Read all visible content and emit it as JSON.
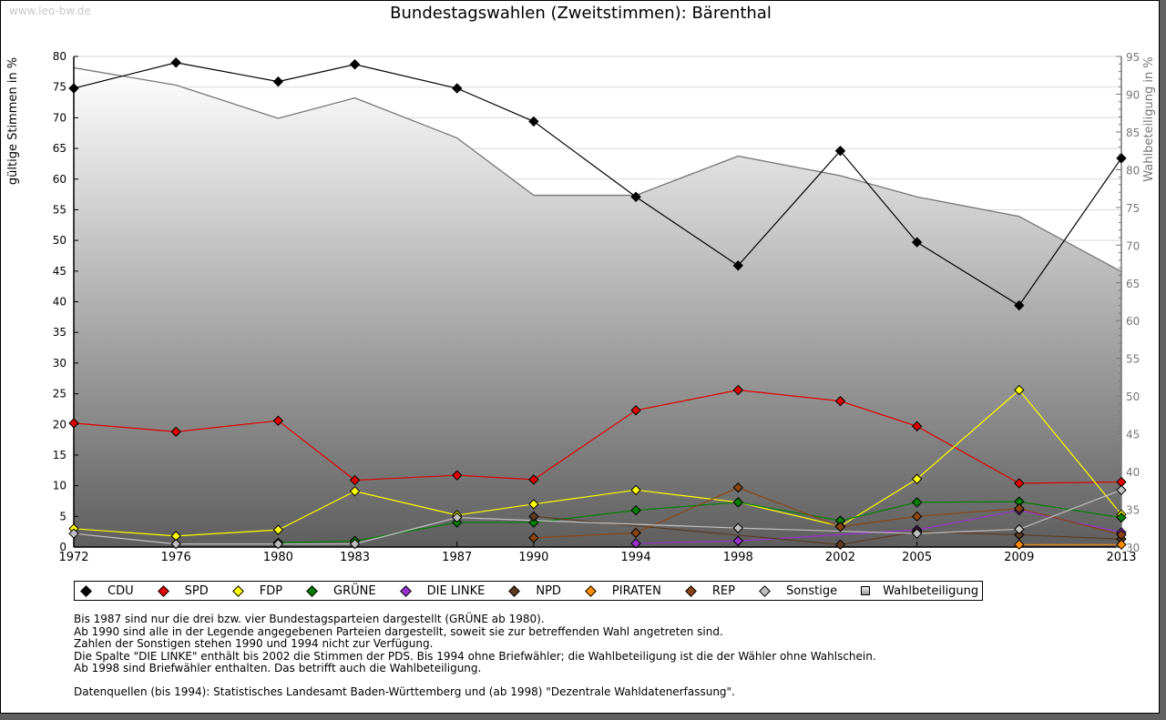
{
  "watermark": "www.leo-bw.de",
  "chart_data": {
    "type": "line",
    "title": "Bundestagswahlen (Zweitstimmen): Bärenthal",
    "ylabel": "gültige Stimmen in %",
    "ylabel_right": "Wahlbeteiligung in %",
    "x": [
      "1972",
      "1976",
      "1980",
      "1983",
      "1987",
      "1990",
      "1994",
      "1998",
      "2002",
      "2005",
      "2009",
      "2013"
    ],
    "ylim": [
      0,
      80
    ],
    "ylim_right": [
      30,
      95
    ],
    "yticks": [
      "0",
      "5",
      "10",
      "15",
      "20",
      "25",
      "30",
      "35",
      "40",
      "45",
      "50",
      "55",
      "60",
      "65",
      "70",
      "75",
      "80"
    ],
    "yticks_right": [
      "30",
      "35",
      "40",
      "45",
      "50",
      "55",
      "60",
      "65",
      "70",
      "75",
      "80",
      "85",
      "90",
      "95"
    ],
    "grid": true,
    "series": [
      {
        "name": "CDU",
        "color": "#000000",
        "values": [
          74.8,
          79.0,
          75.9,
          78.7,
          74.8,
          69.4,
          57.1,
          45.9,
          64.6,
          49.7,
          39.4,
          63.4
        ]
      },
      {
        "name": "SPD",
        "color": "#e00000",
        "values": [
          20.2,
          18.8,
          20.6,
          10.9,
          11.7,
          11.0,
          22.3,
          25.6,
          23.8,
          19.7,
          10.4,
          10.6
        ]
      },
      {
        "name": "FDP",
        "color": "#ffff00",
        "values": [
          3.0,
          1.8,
          2.8,
          9.1,
          5.2,
          7.0,
          9.3,
          7.3,
          3.4,
          11.1,
          25.6,
          5.3
        ]
      },
      {
        "name": "GRÜNE",
        "color": "#008000",
        "values": [
          null,
          null,
          0.7,
          1.0,
          4.0,
          4.0,
          6.0,
          7.3,
          4.3,
          7.3,
          7.4,
          4.8
        ]
      },
      {
        "name": "DIE LINKE",
        "color": "#9932cc",
        "values": [
          null,
          null,
          null,
          null,
          null,
          null,
          0.6,
          1.0,
          null,
          2.8,
          6.0,
          2.4
        ]
      },
      {
        "name": "NPD",
        "color": "#5c3a21",
        "values": [
          null,
          null,
          null,
          null,
          null,
          5.0,
          null,
          null,
          0.4,
          2.5,
          2.0,
          1.3
        ]
      },
      {
        "name": "PIRATEN",
        "color": "#ff8c00",
        "values": [
          null,
          null,
          null,
          null,
          null,
          null,
          null,
          null,
          null,
          null,
          0.4,
          0.4
        ]
      },
      {
        "name": "REP",
        "color": "#8b4513",
        "values": [
          null,
          null,
          null,
          null,
          null,
          1.5,
          2.3,
          9.7,
          3.3,
          5.0,
          6.3,
          2.0
        ]
      },
      {
        "name": "Sonstige",
        "color": "#c0c0c0",
        "values": [
          2.2,
          0.5,
          0.5,
          0.5,
          4.8,
          null,
          null,
          3.1,
          null,
          2.2,
          2.9,
          9.3
        ]
      }
    ],
    "area": {
      "name": "Wahlbeteiligung",
      "axis": "right",
      "values": [
        93.5,
        91.2,
        86.8,
        89.5,
        84.2,
        76.6,
        76.6,
        81.8,
        79.2,
        76.4,
        73.8,
        66.5
      ]
    },
    "legend": {
      "placement": "bottom",
      "entries": [
        "CDU",
        "SPD",
        "FDP",
        "GRÜNE",
        "DIE LINKE",
        "NPD",
        "PIRATEN",
        "REP",
        "Sonstige",
        "Wahlbeteiligung"
      ]
    }
  },
  "notes": [
    "Bis 1987 sind nur die drei bzw. vier Bundestagsparteien dargestellt (GRÜNE ab 1980).",
    "Ab 1990 sind alle in der Legende angegebenen Parteien dargestellt, soweit sie zur betreffenden Wahl angetreten sind.",
    "Zahlen der Sonstigen stehen 1990 und 1994 nicht zur Verfügung.",
    "Die Spalte \"DIE LINKE\" enthält bis 2002 die Stimmen der PDS. Bis 1994 ohne Briefwähler; die Wahlbeteiligung ist die der Wähler ohne Wahlschein.",
    "Ab 1998 sind Briefwähler enthalten. Das betrifft auch die Wahlbeteiligung."
  ],
  "source": "Datenquellen (bis 1994): Statistisches Landesamt Baden-Württemberg und (ab 1998) \"Dezentrale Wahldatenerfassung\"."
}
